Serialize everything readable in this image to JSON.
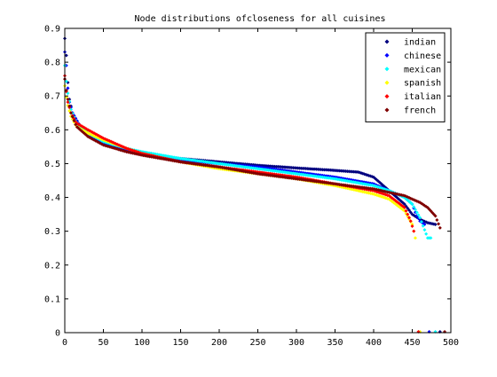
{
  "chart_data": {
    "type": "scatter",
    "title": "Node distributions ofcloseness for all cuisines",
    "xlabel": "",
    "ylabel": "",
    "xlim": [
      0,
      500
    ],
    "ylim": [
      0,
      0.9
    ],
    "xticks": [
      0,
      50,
      100,
      150,
      200,
      250,
      300,
      350,
      400,
      450,
      500
    ],
    "yticks": [
      0,
      0.1,
      0.2,
      0.3,
      0.4,
      0.5,
      0.6,
      0.7,
      0.8,
      0.9
    ],
    "xtick_labels": [
      "0",
      "50",
      "100",
      "150",
      "200",
      "250",
      "300",
      "350",
      "400",
      "450",
      "500"
    ],
    "ytick_labels": [
      "0",
      "0.1",
      "0.2",
      "0.3",
      "0.4",
      "0.5",
      "0.6",
      "0.7",
      "0.8",
      "0.9"
    ],
    "grid": false,
    "legend_position": "top-right",
    "series": [
      {
        "name": "indian",
        "color": "#00007f",
        "n": 480,
        "points": [
          [
            0,
            0.87
          ],
          [
            2,
            0.82
          ],
          [
            5,
            0.7
          ],
          [
            10,
            0.65
          ],
          [
            20,
            0.61
          ],
          [
            40,
            0.57
          ],
          [
            60,
            0.55
          ],
          [
            80,
            0.54
          ],
          [
            100,
            0.53
          ],
          [
            150,
            0.515
          ],
          [
            200,
            0.505
          ],
          [
            250,
            0.495
          ],
          [
            300,
            0.487
          ],
          [
            350,
            0.48
          ],
          [
            380,
            0.475
          ],
          [
            400,
            0.46
          ],
          [
            410,
            0.44
          ],
          [
            420,
            0.42
          ],
          [
            430,
            0.4
          ],
          [
            440,
            0.38
          ],
          [
            450,
            0.35
          ],
          [
            460,
            0.335
          ],
          [
            470,
            0.325
          ],
          [
            480,
            0.32
          ]
        ]
      },
      {
        "name": "chinese",
        "color": "#0000ff",
        "n": 466,
        "points": [
          [
            0,
            0.83
          ],
          [
            2,
            0.79
          ],
          [
            5,
            0.69
          ],
          [
            10,
            0.65
          ],
          [
            20,
            0.61
          ],
          [
            40,
            0.57
          ],
          [
            60,
            0.55
          ],
          [
            80,
            0.54
          ],
          [
            100,
            0.53
          ],
          [
            150,
            0.51
          ],
          [
            200,
            0.5
          ],
          [
            250,
            0.49
          ],
          [
            300,
            0.475
          ],
          [
            350,
            0.46
          ],
          [
            400,
            0.44
          ],
          [
            420,
            0.42
          ],
          [
            440,
            0.4
          ],
          [
            450,
            0.38
          ],
          [
            455,
            0.35
          ],
          [
            460,
            0.33
          ],
          [
            466,
            0.32
          ]
        ]
      },
      {
        "name": "mexican",
        "color": "#00ffff",
        "n": 474,
        "points": [
          [
            0,
            0.79
          ],
          [
            3,
            0.72
          ],
          [
            8,
            0.66
          ],
          [
            15,
            0.62
          ],
          [
            30,
            0.59
          ],
          [
            50,
            0.565
          ],
          [
            80,
            0.545
          ],
          [
            100,
            0.535
          ],
          [
            150,
            0.515
          ],
          [
            200,
            0.5
          ],
          [
            250,
            0.485
          ],
          [
            300,
            0.47
          ],
          [
            350,
            0.455
          ],
          [
            400,
            0.435
          ],
          [
            420,
            0.42
          ],
          [
            440,
            0.4
          ],
          [
            450,
            0.38
          ],
          [
            460,
            0.34
          ],
          [
            470,
            0.28
          ],
          [
            474,
            0.28
          ]
        ]
      },
      {
        "name": "spanish",
        "color": "#ffff00",
        "n": 454,
        "points": [
          [
            0,
            0.73
          ],
          [
            3,
            0.68
          ],
          [
            8,
            0.64
          ],
          [
            15,
            0.61
          ],
          [
            30,
            0.59
          ],
          [
            50,
            0.57
          ],
          [
            80,
            0.545
          ],
          [
            100,
            0.53
          ],
          [
            150,
            0.505
          ],
          [
            200,
            0.485
          ],
          [
            250,
            0.47
          ],
          [
            300,
            0.455
          ],
          [
            350,
            0.435
          ],
          [
            400,
            0.41
          ],
          [
            420,
            0.395
          ],
          [
            440,
            0.36
          ],
          [
            450,
            0.32
          ],
          [
            454,
            0.28
          ]
        ]
      },
      {
        "name": "italian",
        "color": "#ff0000",
        "n": 452,
        "points": [
          [
            0,
            0.76
          ],
          [
            3,
            0.69
          ],
          [
            8,
            0.65
          ],
          [
            15,
            0.62
          ],
          [
            30,
            0.6
          ],
          [
            50,
            0.575
          ],
          [
            80,
            0.545
          ],
          [
            100,
            0.53
          ],
          [
            150,
            0.505
          ],
          [
            200,
            0.49
          ],
          [
            250,
            0.475
          ],
          [
            300,
            0.46
          ],
          [
            350,
            0.44
          ],
          [
            400,
            0.42
          ],
          [
            420,
            0.405
          ],
          [
            440,
            0.37
          ],
          [
            448,
            0.33
          ],
          [
            452,
            0.3
          ]
        ]
      },
      {
        "name": "french",
        "color": "#7f0000",
        "n": 486,
        "points": [
          [
            0,
            0.75
          ],
          [
            3,
            0.7
          ],
          [
            8,
            0.65
          ],
          [
            15,
            0.61
          ],
          [
            30,
            0.58
          ],
          [
            50,
            0.555
          ],
          [
            80,
            0.535
          ],
          [
            100,
            0.525
          ],
          [
            150,
            0.505
          ],
          [
            200,
            0.49
          ],
          [
            250,
            0.47
          ],
          [
            300,
            0.455
          ],
          [
            350,
            0.44
          ],
          [
            400,
            0.425
          ],
          [
            420,
            0.415
          ],
          [
            440,
            0.405
          ],
          [
            460,
            0.385
          ],
          [
            470,
            0.37
          ],
          [
            480,
            0.345
          ],
          [
            486,
            0.31
          ]
        ]
      }
    ]
  }
}
